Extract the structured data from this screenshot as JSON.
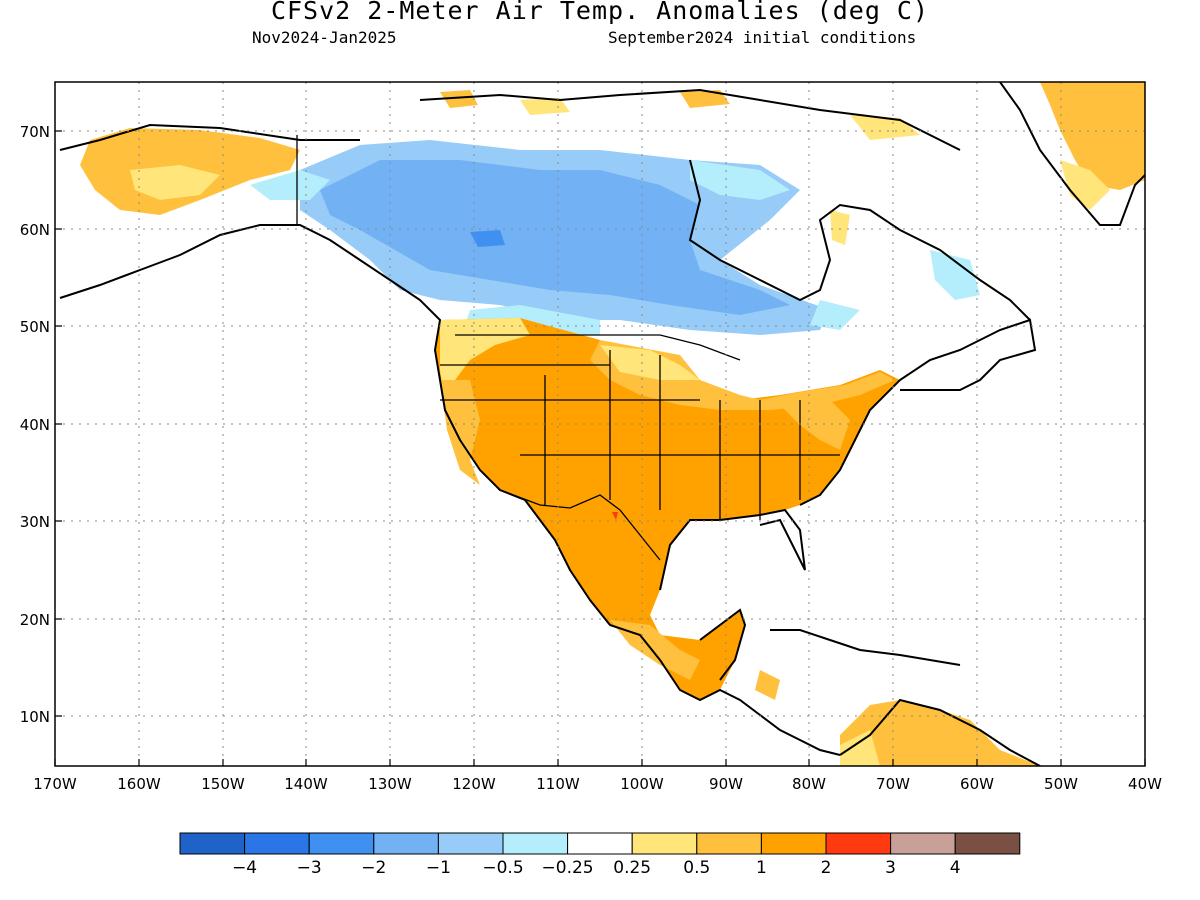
{
  "title": "CFSv2 2-Meter Air Temp. Anomalies (deg C)",
  "subtitle_left": "Nov2024-Jan2025",
  "subtitle_right": "September2024 initial conditions",
  "lat_labels": [
    "10N",
    "20N",
    "30N",
    "40N",
    "50N",
    "60N",
    "70N"
  ],
  "lon_labels": [
    "170W",
    "160W",
    "150W",
    "140W",
    "130W",
    "120W",
    "110W",
    "100W",
    "90W",
    "80W",
    "70W",
    "60W",
    "50W",
    "40W"
  ],
  "legend": {
    "colors": [
      "#1f63c9",
      "#2b76e6",
      "#3f90f0",
      "#72b2f4",
      "#97cbf8",
      "#b4eefc",
      "#ffffff",
      "#ffe57a",
      "#ffc03d",
      "#ffa200",
      "#ff3a10",
      "#c8a097",
      "#7a5044"
    ],
    "labels": [
      "-4",
      "-3",
      "-2",
      "-1",
      "-0.5",
      "-0.25",
      "0.25",
      "0.5",
      "1",
      "2",
      "3",
      "4"
    ]
  }
}
